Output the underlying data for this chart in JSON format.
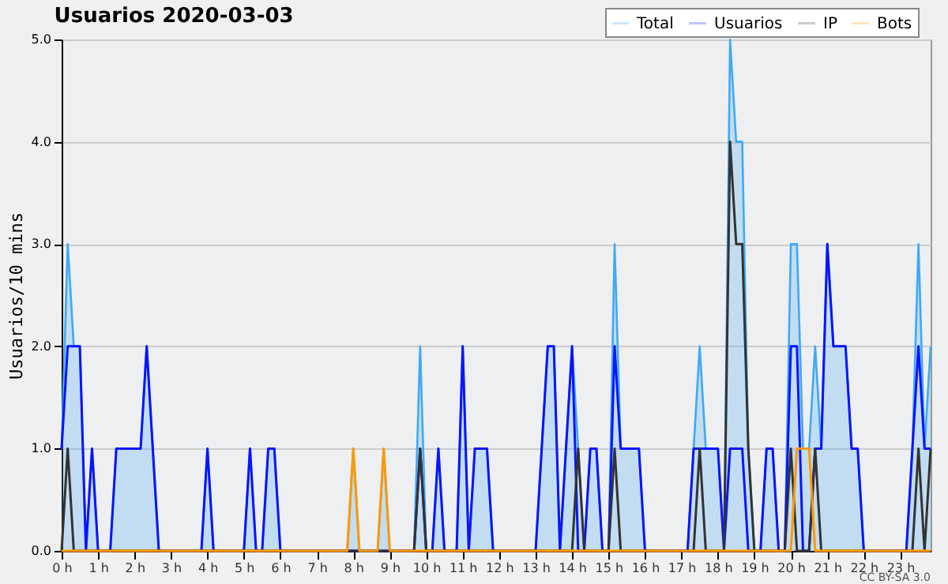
{
  "chart_data": {
    "type": "line",
    "title": "Usuarios  2020-03-03",
    "ylabel": "Usuarios/10 mins",
    "x": [
      0,
      0.1667,
      0.3333,
      0.5,
      0.6667,
      0.8333,
      1,
      1.1667,
      1.3333,
      1.5,
      1.6667,
      1.8333,
      2,
      2.1667,
      2.3333,
      2.5,
      2.6667,
      2.8333,
      3,
      3.1667,
      3.3333,
      3.5,
      3.6667,
      3.8333,
      4,
      4.1667,
      4.3333,
      4.5,
      4.6667,
      4.8333,
      5,
      5.1667,
      5.3333,
      5.5,
      5.6667,
      5.8333,
      6,
      6.1667,
      6.3333,
      6.5,
      6.6667,
      6.8333,
      7,
      7.1667,
      7.3333,
      7.5,
      7.6667,
      7.8333,
      8,
      8.1667,
      8.3333,
      8.5,
      8.6667,
      8.8333,
      9,
      9.1667,
      9.3333,
      9.5,
      9.6667,
      9.8333,
      10,
      10.1667,
      10.3333,
      10.5,
      10.6667,
      10.8333,
      11,
      11.1667,
      11.3333,
      11.5,
      11.6667,
      11.8333,
      12,
      12.1667,
      12.3333,
      12.5,
      12.6667,
      12.8333,
      13,
      13.1667,
      13.3333,
      13.5,
      13.6667,
      13.8333,
      14,
      14.1667,
      14.3333,
      14.5,
      14.6667,
      14.8333,
      15,
      15.1667,
      15.3333,
      15.5,
      15.6667,
      15.8333,
      16,
      16.1667,
      16.3333,
      16.5,
      16.6667,
      16.8333,
      17,
      17.1667,
      17.3333,
      17.5,
      17.6667,
      17.8333,
      18,
      18.1667,
      18.3333,
      18.5,
      18.6667,
      18.8333,
      19,
      19.1667,
      19.3333,
      19.5,
      19.6667,
      19.8333,
      20,
      20.1667,
      20.3333,
      20.5,
      20.6667,
      20.8333,
      21,
      21.1667,
      21.3333,
      21.5,
      21.6667,
      21.8333,
      22,
      22.1667,
      22.3333,
      22.5,
      22.6667,
      22.8333,
      23,
      23.1667,
      23.3333,
      23.5,
      23.6667,
      23.8333
    ],
    "series": [
      {
        "name": "Total",
        "type": "area",
        "color": "#3fa9f5",
        "values": [
          1,
          3,
          2,
          2,
          0,
          1,
          0,
          0,
          0,
          1,
          1,
          1,
          1,
          1,
          2,
          1,
          0,
          0,
          0,
          0,
          0,
          0,
          0,
          0,
          1,
          0,
          0,
          0,
          0,
          0,
          0,
          1,
          0,
          0,
          1,
          1,
          0,
          0,
          0,
          0,
          0,
          0,
          0,
          0,
          0,
          0,
          0,
          0,
          1,
          0,
          0,
          0,
          0,
          1,
          0,
          0,
          0,
          0,
          0,
          2,
          0,
          0,
          1,
          0,
          0,
          0,
          2,
          0,
          1,
          1,
          1,
          0,
          0,
          0,
          0,
          0,
          0,
          0,
          0,
          1,
          2,
          2,
          0,
          1,
          2,
          1,
          0,
          1,
          1,
          0,
          0,
          3,
          1,
          1,
          1,
          1,
          0,
          0,
          0,
          0,
          0,
          0,
          0,
          0,
          1,
          2,
          1,
          1,
          1,
          0,
          5,
          4,
          4,
          1,
          0,
          0,
          1,
          1,
          0,
          0,
          3,
          3,
          1,
          1,
          2,
          1,
          3,
          2,
          2,
          2,
          1,
          1,
          0,
          0,
          0,
          0,
          0,
          0,
          0,
          0,
          1,
          3,
          1,
          2
        ]
      },
      {
        "name": "Usuarios",
        "color": "#0a14ff",
        "values": [
          1,
          2,
          2,
          2,
          0,
          1,
          0,
          0,
          0,
          1,
          1,
          1,
          1,
          1,
          2,
          1,
          0,
          0,
          0,
          0,
          0,
          0,
          0,
          0,
          1,
          0,
          0,
          0,
          0,
          0,
          0,
          1,
          0,
          0,
          1,
          1,
          0,
          0,
          0,
          0,
          0,
          0,
          0,
          0,
          0,
          0,
          0,
          0,
          0,
          0,
          0,
          0,
          0,
          0,
          0,
          0,
          0,
          0,
          0,
          1,
          0,
          0,
          1,
          0,
          0,
          0,
          2,
          0,
          1,
          1,
          1,
          0,
          0,
          0,
          0,
          0,
          0,
          0,
          0,
          1,
          2,
          2,
          0,
          1,
          2,
          0,
          0,
          1,
          1,
          0,
          0,
          2,
          1,
          1,
          1,
          1,
          0,
          0,
          0,
          0,
          0,
          0,
          0,
          0,
          1,
          1,
          1,
          1,
          1,
          0,
          1,
          1,
          1,
          0,
          0,
          0,
          1,
          1,
          0,
          0,
          2,
          2,
          0,
          0,
          1,
          1,
          3,
          2,
          2,
          2,
          1,
          1,
          0,
          0,
          0,
          0,
          0,
          0,
          0,
          0,
          1,
          2,
          1,
          1
        ]
      },
      {
        "name": "IP",
        "color": "#333333",
        "values": [
          0,
          1,
          0,
          0,
          0,
          0,
          0,
          0,
          0,
          0,
          0,
          0,
          0,
          0,
          0,
          0,
          0,
          0,
          0,
          0,
          0,
          0,
          0,
          0,
          0,
          0,
          0,
          0,
          0,
          0,
          0,
          0,
          0,
          0,
          0,
          0,
          0,
          0,
          0,
          0,
          0,
          0,
          0,
          0,
          0,
          0,
          0,
          0,
          0,
          0,
          0,
          0,
          0,
          0,
          0,
          0,
          0,
          0,
          0,
          1,
          0,
          0,
          0,
          0,
          0,
          0,
          0,
          0,
          0,
          0,
          0,
          0,
          0,
          0,
          0,
          0,
          0,
          0,
          0,
          0,
          0,
          0,
          0,
          0,
          0,
          1,
          0,
          0,
          0,
          0,
          0,
          1,
          0,
          0,
          0,
          0,
          0,
          0,
          0,
          0,
          0,
          0,
          0,
          0,
          0,
          1,
          0,
          0,
          0,
          0,
          4,
          3,
          3,
          1,
          0,
          0,
          0,
          0,
          0,
          0,
          1,
          0,
          0,
          0,
          1,
          0,
          0,
          0,
          0,
          0,
          0,
          0,
          0,
          0,
          0,
          0,
          0,
          0,
          0,
          0,
          0,
          1,
          0,
          1
        ]
      },
      {
        "name": "Bots",
        "color": "#ff9900",
        "values": [
          0,
          0,
          0,
          0,
          0,
          0,
          0,
          0,
          0,
          0,
          0,
          0,
          0,
          0,
          0,
          0,
          0,
          0,
          0,
          0,
          0,
          0,
          0,
          0,
          0,
          0,
          0,
          0,
          0,
          0,
          0,
          0,
          0,
          0,
          0,
          0,
          0,
          0,
          0,
          0,
          0,
          0,
          0,
          0,
          0,
          0,
          0,
          0,
          1,
          0,
          0,
          0,
          0,
          1,
          0,
          0,
          0,
          0,
          0,
          0,
          0,
          0,
          0,
          0,
          0,
          0,
          0,
          0,
          0,
          0,
          0,
          0,
          0,
          0,
          0,
          0,
          0,
          0,
          0,
          0,
          0,
          0,
          0,
          0,
          0,
          0,
          0,
          0,
          0,
          0,
          0,
          0,
          0,
          0,
          0,
          0,
          0,
          0,
          0,
          0,
          0,
          0,
          0,
          0,
          0,
          0,
          0,
          0,
          0,
          0,
          0,
          0,
          0,
          0,
          0,
          0,
          0,
          0,
          0,
          0,
          0,
          1,
          1,
          1,
          0,
          0,
          0,
          0,
          0,
          0,
          0,
          0,
          0,
          0,
          0,
          0,
          0,
          0,
          0,
          0,
          0,
          0,
          0,
          0
        ]
      }
    ],
    "xlim": [
      0,
      23.8333
    ],
    "xticks": [
      {
        "value": 0,
        "label": "0 h"
      },
      {
        "value": 1,
        "label": "1 h"
      },
      {
        "value": 2,
        "label": "2 h"
      },
      {
        "value": 3,
        "label": "3 h"
      },
      {
        "value": 4,
        "label": "4 h"
      },
      {
        "value": 5,
        "label": "5 h"
      },
      {
        "value": 6,
        "label": "6 h"
      },
      {
        "value": 7,
        "label": "7 h"
      },
      {
        "value": 8,
        "label": "8 h"
      },
      {
        "value": 9,
        "label": "9 h"
      },
      {
        "value": 10,
        "label": "10 h"
      },
      {
        "value": 11,
        "label": "11 h"
      },
      {
        "value": 12,
        "label": "12 h"
      },
      {
        "value": 13,
        "label": "13 h"
      },
      {
        "value": 14,
        "label": "14 h"
      },
      {
        "value": 15,
        "label": "15 h"
      },
      {
        "value": 16,
        "label": "16 h"
      },
      {
        "value": 17,
        "label": "17 h"
      },
      {
        "value": 18,
        "label": "18 h"
      },
      {
        "value": 19,
        "label": "19 h"
      },
      {
        "value": 20,
        "label": "20 h"
      },
      {
        "value": 21,
        "label": "21 h"
      },
      {
        "value": 22,
        "label": "22 h"
      },
      {
        "value": 23,
        "label": "23 h"
      }
    ],
    "ylim": [
      0,
      5
    ],
    "yticks": [
      {
        "value": 0,
        "label": "0.0"
      },
      {
        "value": 1,
        "label": "1.0"
      },
      {
        "value": 2,
        "label": "2.0"
      },
      {
        "value": 3,
        "label": "3.0"
      },
      {
        "value": 4,
        "label": "4.0"
      },
      {
        "value": 5,
        "label": "5.0"
      }
    ],
    "grid": "y",
    "legend": "top right",
    "annotations": [
      "CC BY-SA 3.0"
    ]
  }
}
